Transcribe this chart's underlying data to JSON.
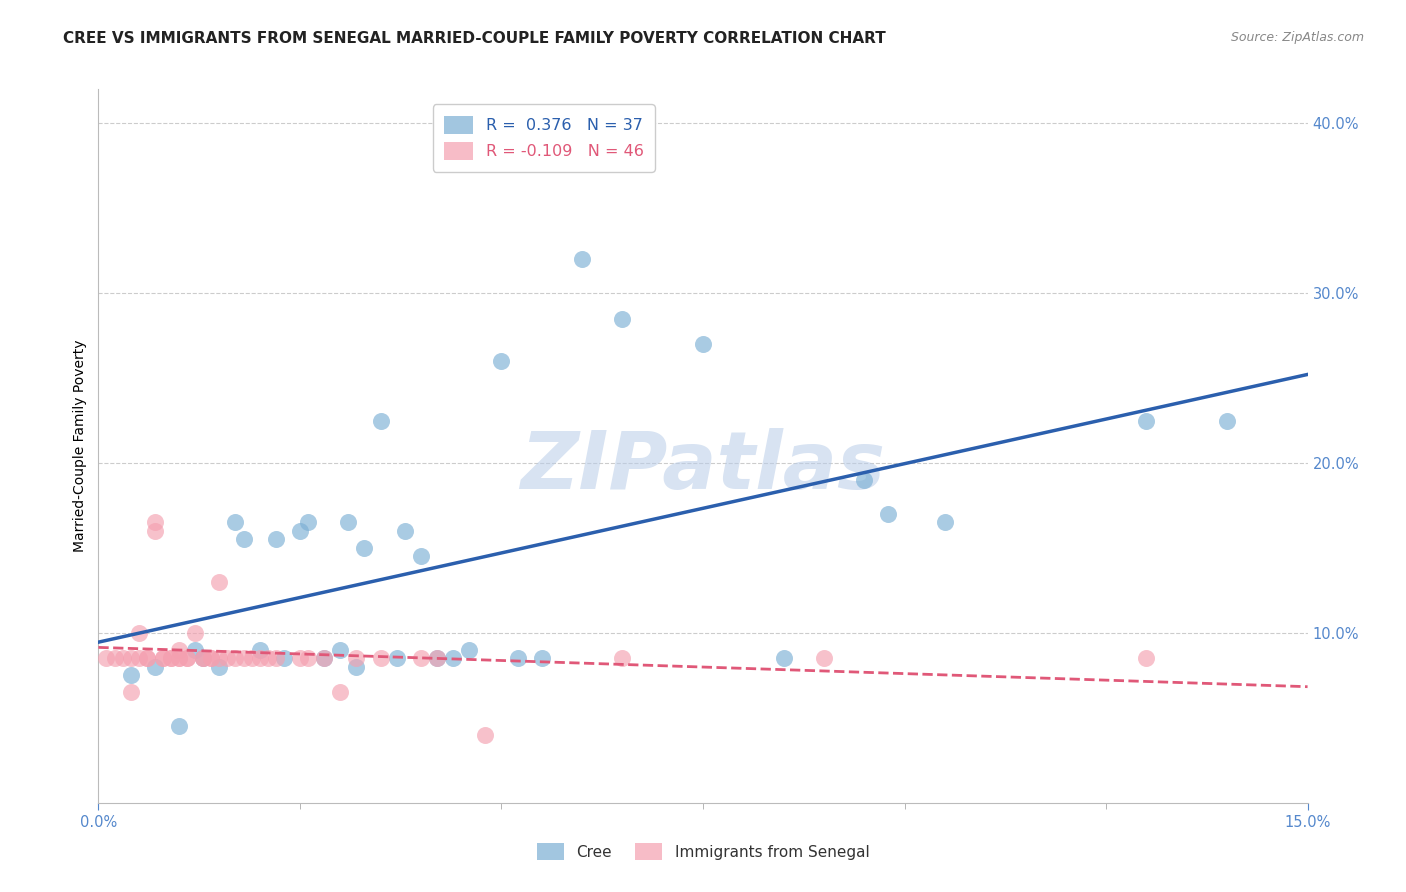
{
  "title": "CREE VS IMMIGRANTS FROM SENEGAL MARRIED-COUPLE FAMILY POVERTY CORRELATION CHART",
  "source": "Source: ZipAtlas.com",
  "ylabel": "Married-Couple Family Poverty",
  "right_ytick_vals": [
    0.1,
    0.2,
    0.3,
    0.4
  ],
  "right_ytick_labels": [
    "10.0%",
    "20.0%",
    "30.0%",
    "40.0%"
  ],
  "xlim": [
    0.0,
    0.15
  ],
  "ylim": [
    0.0,
    0.42
  ],
  "cree_R": 0.376,
  "cree_N": 37,
  "senegal_R": -0.109,
  "senegal_N": 46,
  "cree_color": "#7bafd4",
  "senegal_color": "#f4a0b0",
  "cree_line_color": "#2b5fad",
  "senegal_line_color": "#e05878",
  "watermark_text": "ZIPatlas",
  "background_color": "#ffffff",
  "legend_label_blue": "Cree",
  "legend_label_pink": "Immigrants from Senegal",
  "cree_x": [
    0.004,
    0.007,
    0.01,
    0.012,
    0.013,
    0.015,
    0.017,
    0.018,
    0.02,
    0.022,
    0.023,
    0.025,
    0.026,
    0.028,
    0.03,
    0.031,
    0.032,
    0.033,
    0.035,
    0.037,
    0.038,
    0.04,
    0.042,
    0.044,
    0.046,
    0.05,
    0.052,
    0.055,
    0.06,
    0.065,
    0.075,
    0.085,
    0.095,
    0.098,
    0.105,
    0.13,
    0.14
  ],
  "cree_y": [
    0.075,
    0.08,
    0.045,
    0.09,
    0.085,
    0.08,
    0.165,
    0.155,
    0.09,
    0.155,
    0.085,
    0.16,
    0.165,
    0.085,
    0.09,
    0.165,
    0.08,
    0.15,
    0.225,
    0.085,
    0.16,
    0.145,
    0.085,
    0.085,
    0.09,
    0.26,
    0.085,
    0.085,
    0.32,
    0.285,
    0.27,
    0.085,
    0.19,
    0.17,
    0.165,
    0.225,
    0.225
  ],
  "senegal_x": [
    0.001,
    0.002,
    0.003,
    0.004,
    0.004,
    0.005,
    0.005,
    0.006,
    0.006,
    0.007,
    0.007,
    0.008,
    0.008,
    0.009,
    0.009,
    0.01,
    0.01,
    0.01,
    0.011,
    0.011,
    0.012,
    0.013,
    0.013,
    0.014,
    0.014,
    0.015,
    0.015,
    0.016,
    0.017,
    0.018,
    0.019,
    0.02,
    0.021,
    0.022,
    0.025,
    0.026,
    0.028,
    0.03,
    0.032,
    0.035,
    0.04,
    0.042,
    0.048,
    0.065,
    0.09,
    0.13
  ],
  "senegal_y": [
    0.085,
    0.085,
    0.085,
    0.085,
    0.065,
    0.085,
    0.1,
    0.085,
    0.085,
    0.165,
    0.16,
    0.085,
    0.085,
    0.085,
    0.085,
    0.085,
    0.085,
    0.09,
    0.085,
    0.085,
    0.1,
    0.085,
    0.085,
    0.085,
    0.085,
    0.13,
    0.085,
    0.085,
    0.085,
    0.085,
    0.085,
    0.085,
    0.085,
    0.085,
    0.085,
    0.085,
    0.085,
    0.065,
    0.085,
    0.085,
    0.085,
    0.085,
    0.04,
    0.085,
    0.085,
    0.085
  ],
  "grid_color": "#cccccc",
  "title_fontsize": 11,
  "axis_label_fontsize": 10,
  "tick_fontsize": 10.5,
  "tick_color": "#5588cc"
}
